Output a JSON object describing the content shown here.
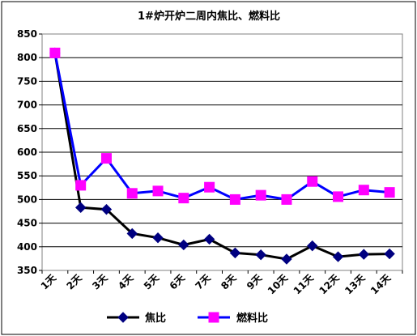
{
  "chart_data": {
    "type": "line",
    "title": "1#炉开炉二周内焦比、燃料比",
    "categories": [
      "1天",
      "2天",
      "3天",
      "4天",
      "5天",
      "6天",
      "7天",
      "8天",
      "9天",
      "10天",
      "11天",
      "12天",
      "13天",
      "14天"
    ],
    "series": [
      {
        "name": "焦比",
        "color": "#000000",
        "marker_color": "#000080",
        "marker": "diamond",
        "values": [
          810,
          483,
          479,
          428,
          419,
          404,
          416,
          387,
          383,
          374,
          402,
          379,
          384,
          385
        ]
      },
      {
        "name": "燃料比",
        "color": "#0000ff",
        "marker_color": "#ff00ff",
        "marker": "square",
        "values": [
          810,
          530,
          587,
          513,
          518,
          503,
          526,
          500,
          509,
          500,
          538,
          506,
          520,
          515
        ]
      }
    ],
    "ylim": [
      350,
      850
    ],
    "yticks": [
      350,
      400,
      450,
      500,
      550,
      600,
      650,
      700,
      750,
      800,
      850
    ],
    "grid": true,
    "legend": "bottom"
  }
}
